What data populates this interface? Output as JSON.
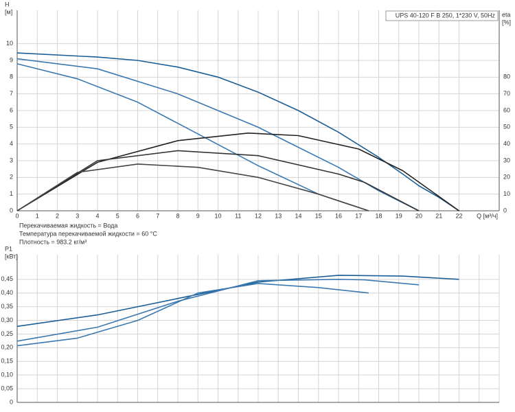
{
  "chart_data": [
    {
      "type": "line",
      "title": "UPS 40-120 F B 250, 1*230 V, 50Hz",
      "x_label": "Q [м³/ч]",
      "y_label": "H",
      "y_unit": "[м]",
      "y2_label": "eta",
      "y2_unit": "[%]",
      "xlim": [
        0,
        24
      ],
      "xticks": [
        0,
        1,
        2,
        3,
        4,
        5,
        6,
        7,
        8,
        9,
        10,
        11,
        12,
        13,
        14,
        15,
        16,
        17,
        18,
        19,
        20,
        21,
        22
      ],
      "ylim": [
        0,
        12
      ],
      "yticks": [
        0,
        1,
        2,
        3,
        4,
        5,
        6,
        7,
        8,
        9,
        10
      ],
      "y2lim": [
        0,
        120
      ],
      "y2ticks": [
        0,
        10,
        20,
        30,
        40,
        50,
        60,
        70,
        80
      ],
      "grid": true,
      "series": [
        {
          "color": "#1b5e96",
          "x": [
            0,
            4,
            6,
            8,
            10,
            12,
            14,
            16,
            18,
            19.2,
            20,
            21,
            22
          ],
          "values": [
            9.45,
            9.2,
            9.0,
            8.6,
            8.0,
            7.1,
            6.0,
            4.7,
            3.2,
            2.2,
            1.5,
            0.8,
            0
          ]
        },
        {
          "color": "#3b78b0",
          "x": [
            0,
            4,
            8,
            12,
            16,
            18,
            20
          ],
          "values": [
            9.1,
            8.5,
            7.0,
            5.0,
            2.6,
            1.2,
            0
          ]
        },
        {
          "color": "#3b78b0",
          "x": [
            0,
            3,
            6,
            9,
            12,
            15,
            17.5
          ],
          "values": [
            8.8,
            7.9,
            6.5,
            4.6,
            2.7,
            1.0,
            0
          ]
        },
        {
          "color": "#222222",
          "axis": "y2",
          "x": [
            0,
            4,
            8,
            11.5,
            14,
            17,
            19.2,
            22
          ],
          "values": [
            0,
            29,
            42,
            46.5,
            45,
            37,
            24,
            0
          ]
        },
        {
          "color": "#333333",
          "axis": "y2",
          "x": [
            0,
            4,
            8,
            12,
            16,
            17.3,
            20
          ],
          "values": [
            0,
            30,
            36,
            33,
            22,
            17,
            0
          ]
        },
        {
          "color": "#444444",
          "axis": "y2",
          "x": [
            0,
            3,
            6,
            9,
            12,
            15,
            17.5
          ],
          "values": [
            0,
            23,
            28,
            26,
            20,
            10,
            0
          ]
        }
      ]
    },
    {
      "type": "line",
      "y_label": "P1",
      "y_unit": "[кВт]",
      "xlim": [
        0,
        24
      ],
      "xticks": [
        0,
        1,
        2,
        3,
        4,
        5,
        6,
        7,
        8,
        9,
        10,
        11,
        12,
        13,
        14,
        15,
        16,
        17,
        18,
        19,
        20,
        21,
        22,
        23,
        24
      ],
      "xtick_labels": false,
      "ylim": [
        0,
        0.54
      ],
      "yticks": [
        0,
        {
          "value": 0.05,
          "label": "0,05"
        },
        {
          "value": 0.1,
          "label": "0,10"
        },
        {
          "value": 0.15,
          "label": "0,15"
        },
        {
          "value": 0.2,
          "label": "0,20"
        },
        {
          "value": 0.25,
          "label": "0,25"
        },
        {
          "value": 0.3,
          "label": "0,30"
        },
        {
          "value": 0.35,
          "label": "0,35"
        },
        {
          "value": 0.4,
          "label": "0,40"
        },
        {
          "value": 0.45,
          "label": "0,45"
        }
      ],
      "grid": true,
      "series": [
        {
          "color": "#1b5e96",
          "x": [
            0,
            4,
            8,
            12,
            16,
            19.2,
            22
          ],
          "values": [
            0.278,
            0.32,
            0.38,
            0.44,
            0.465,
            0.462,
            0.45
          ]
        },
        {
          "color": "#3b78b0",
          "x": [
            0,
            4,
            8,
            12,
            16,
            17.3,
            20
          ],
          "values": [
            0.224,
            0.275,
            0.37,
            0.445,
            0.45,
            0.448,
            0.43
          ]
        },
        {
          "color": "#3b78b0",
          "x": [
            0,
            3,
            6,
            9,
            12,
            15,
            17.5
          ],
          "values": [
            0.207,
            0.235,
            0.3,
            0.4,
            0.435,
            0.42,
            0.4
          ]
        }
      ]
    }
  ],
  "notes": [
    "Перекачиваемая жидкость = Вода",
    "Температура перекачиваемой жидкости = 60 °C",
    "Плотность = 983.2 кг/м³"
  ]
}
